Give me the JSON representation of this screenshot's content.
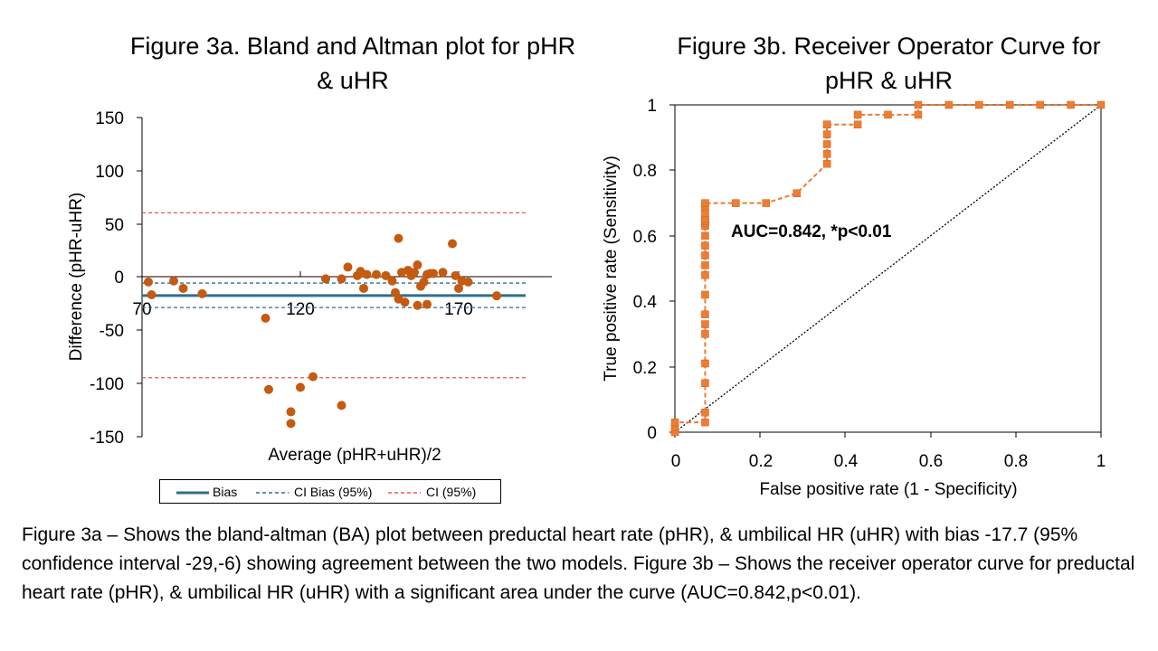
{
  "chart_data": [
    {
      "type": "scatter",
      "title": "Figure 3a. Bland and Altman plot for pHR & uHR",
      "xlabel": "Average (pHR+uHR)/2",
      "ylabel": "Difference (pHR-uHR)",
      "xlim": [
        70,
        200
      ],
      "ylim": [
        -150,
        150
      ],
      "x_ticks": [
        "70",
        "120",
        "170"
      ],
      "y_ticks": [
        "150",
        "100",
        "50",
        "0",
        "-50",
        "-100",
        "-150"
      ],
      "grid": false,
      "lines": [
        {
          "name": "Bias",
          "y": -17.7,
          "style": "solid",
          "color": "#2e6f8e"
        },
        {
          "name": "CI Bias (95%)",
          "y": [
            -6,
            -29
          ],
          "style": "dashed",
          "color": "#2e6f8e"
        },
        {
          "name": "CI (95%)",
          "y": [
            60,
            -95
          ],
          "style": "dashed",
          "color": "#e05a4f"
        }
      ],
      "legend_position": "bottom",
      "points": [
        [
          72,
          -5
        ],
        [
          73,
          -17
        ],
        [
          80,
          -4
        ],
        [
          83,
          -11
        ],
        [
          89,
          -16
        ],
        [
          109,
          -39
        ],
        [
          110,
          -106
        ],
        [
          117,
          -127
        ],
        [
          117,
          -138
        ],
        [
          120,
          -104
        ],
        [
          124,
          -94
        ],
        [
          128,
          -2
        ],
        [
          133,
          -121
        ],
        [
          133,
          -2
        ],
        [
          135,
          9
        ],
        [
          138,
          1
        ],
        [
          139,
          5
        ],
        [
          140,
          -11
        ],
        [
          141,
          2
        ],
        [
          144,
          2
        ],
        [
          147,
          1
        ],
        [
          149,
          -4
        ],
        [
          150,
          -15
        ],
        [
          151,
          -21
        ],
        [
          151,
          36
        ],
        [
          152,
          4
        ],
        [
          153,
          -24
        ],
        [
          154,
          6
        ],
        [
          155,
          1
        ],
        [
          156,
          4
        ],
        [
          157,
          11
        ],
        [
          157,
          -27
        ],
        [
          158,
          -9
        ],
        [
          159,
          -5
        ],
        [
          160,
          -26
        ],
        [
          160,
          2
        ],
        [
          161,
          3
        ],
        [
          162,
          3
        ],
        [
          165,
          4
        ],
        [
          168,
          31
        ],
        [
          169,
          1
        ],
        [
          170,
          -11
        ],
        [
          171,
          -4
        ],
        [
          173,
          -5
        ],
        [
          182,
          -18
        ]
      ],
      "point_color": "#c55a11"
    },
    {
      "type": "line",
      "title": "Figure 3b. Receiver Operator Curve for pHR & uHR",
      "xlabel": "False positive rate (1 - Specificity)",
      "ylabel": "True positive rate (Sensitivity)",
      "xlim": [
        0,
        1
      ],
      "ylim": [
        0,
        1
      ],
      "x_ticks": [
        "0",
        "0.2",
        "0.4",
        "0.6",
        "0.8",
        "1"
      ],
      "y_ticks": [
        "1",
        "0.8",
        "0.6",
        "0.4",
        "0.2",
        "0"
      ],
      "grid": false,
      "annotation": "AUC=0.842, *p<0.01",
      "series": [
        {
          "color": "#ed7d31",
          "marker": "square",
          "style": "dashed",
          "x": [
            0,
            0,
            0,
            0.071,
            0.071,
            0.071,
            0.071,
            0.071,
            0.071,
            0.071,
            0.071,
            0.071,
            0.071,
            0.071,
            0.071,
            0.071,
            0.071,
            0.071,
            0.071,
            0.071,
            0.071,
            0.071,
            0.071,
            0.143,
            0.214,
            0.286,
            0.357,
            0.357,
            0.357,
            0.357,
            0.357,
            0.357,
            0.357,
            0.429,
            0.429,
            0.5,
            0.571,
            0.571,
            0.643,
            0.714,
            0.786,
            0.857,
            0.929,
            1
          ],
          "y": [
            0,
            0.015,
            0.03,
            0.03,
            0.06,
            0.15,
            0.21,
            0.3,
            0.33,
            0.36,
            0.42,
            0.48,
            0.51,
            0.54,
            0.57,
            0.6,
            0.63,
            0.64,
            0.645,
            0.65,
            0.67,
            0.69,
            0.7,
            0.7,
            0.7,
            0.73,
            0.82,
            0.85,
            0.88,
            0.91,
            0.94,
            0.94,
            0.94,
            0.94,
            0.97,
            0.97,
            0.97,
            1,
            1,
            1,
            1,
            1,
            1,
            1
          ]
        },
        {
          "color": "#000000",
          "style": "dotted",
          "x": [
            0,
            1
          ],
          "y": [
            0,
            1
          ]
        }
      ]
    }
  ],
  "legend": {
    "bias": "Bias",
    "ci_bias": "CI Bias (95%)",
    "ci": "CI (95%)"
  },
  "caption": "Figure 3a – Shows the bland-altman (BA) plot between preductal heart rate (pHR), & umbilical HR (uHR) with bias -17.7 (95% confidence interval -29,-6) showing agreement between the two models. Figure 3b – Shows the receiver operator curve for preductal heart rate (pHR), & umbilical HR (uHR) with a significant area under the curve (AUC=0.842,p<0.01)."
}
